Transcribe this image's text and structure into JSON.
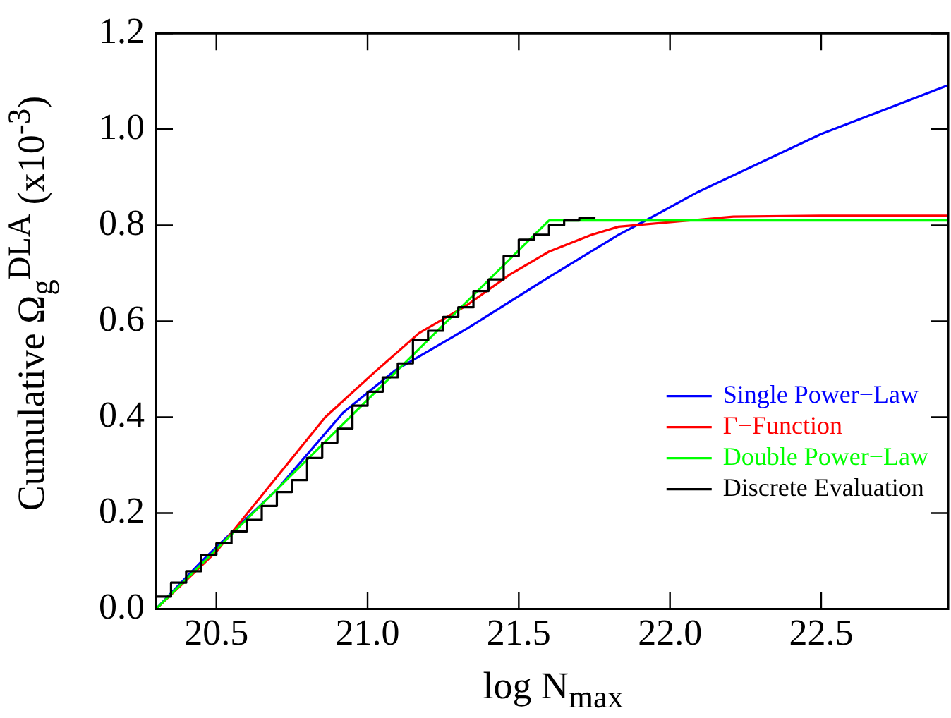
{
  "chart_data": {
    "type": "line",
    "xlabel": "log N$_{max}$",
    "ylabel": "Cumulative Ω$_{g}$$^{DLA}$ (x10$^{-3}$)",
    "xlim": [
      20.3,
      22.92
    ],
    "xticks": [
      20.5,
      {
        "value": 21,
        "label": "21.0"
      },
      {
        "value": 21.5,
        "label": "21.5"
      },
      {
        "value": 22,
        "label": "22.0"
      },
      22.5
    ],
    "ylim": [
      0,
      1.2
    ],
    "yticks": [
      {
        "value": 0,
        "label": "0.0"
      },
      {
        "value": 0.2,
        "label": "0.2"
      },
      {
        "value": 0.4,
        "label": "0.4"
      },
      {
        "value": 0.6,
        "label": "0.6"
      },
      {
        "value": 0.8,
        "label": "0.8"
      },
      {
        "value": 1,
        "label": "1.0"
      },
      {
        "value": 1.2,
        "label": "1.2"
      }
    ],
    "grid": false,
    "legend": "bottom right",
    "marker": "none",
    "line_style": "solid",
    "series": [
      {
        "name": "Single Power−Law",
        "color": "#0000ff",
        "x": [
          20.3,
          20.45,
          20.7,
          20.92,
          21.09,
          21.33,
          21.6,
          21.83,
          21.92,
          22.095,
          22.5,
          22.92
        ],
        "values": [
          0,
          0.099,
          0.249,
          0.41,
          0.497,
          0.585,
          0.692,
          0.78,
          0.81,
          0.87,
          0.99,
          1.092
        ]
      },
      {
        "name": "Γ−Function",
        "color": "#ff0000",
        "x": [
          20.3,
          20.5,
          20.86,
          21.02,
          21.17,
          21.33,
          21.47,
          21.6,
          21.74,
          21.83,
          22.21,
          22.5,
          22.92
        ],
        "values": [
          0,
          0.12,
          0.4,
          0.492,
          0.575,
          0.634,
          0.697,
          0.745,
          0.78,
          0.797,
          0.818,
          0.82,
          0.82
        ]
      },
      {
        "name": "Double Power−Law",
        "color": "#00ff00",
        "x": [
          20.3,
          21.6,
          22.92
        ],
        "values": [
          0,
          0.81,
          0.81
        ]
      },
      {
        "name": "Discrete Evaluation",
        "color": "#000000",
        "type": "step",
        "x": [
          20.3,
          20.35,
          20.4,
          20.45,
          20.5,
          20.55,
          20.6,
          20.65,
          20.7,
          20.75,
          20.8,
          20.85,
          20.9,
          20.95,
          21.0,
          21.05,
          21.1,
          21.15,
          21.2,
          21.25,
          21.3,
          21.35,
          21.4,
          21.45,
          21.5,
          21.55,
          21.6,
          21.65,
          21.7,
          21.75
        ],
        "values": [
          0.026,
          0.055,
          0.079,
          0.113,
          0.137,
          0.162,
          0.186,
          0.215,
          0.244,
          0.269,
          0.315,
          0.347,
          0.376,
          0.424,
          0.453,
          0.483,
          0.512,
          0.561,
          0.58,
          0.609,
          0.629,
          0.663,
          0.687,
          0.736,
          0.77,
          0.78,
          0.8,
          0.81,
          0.815,
          0.817
        ]
      }
    ]
  }
}
